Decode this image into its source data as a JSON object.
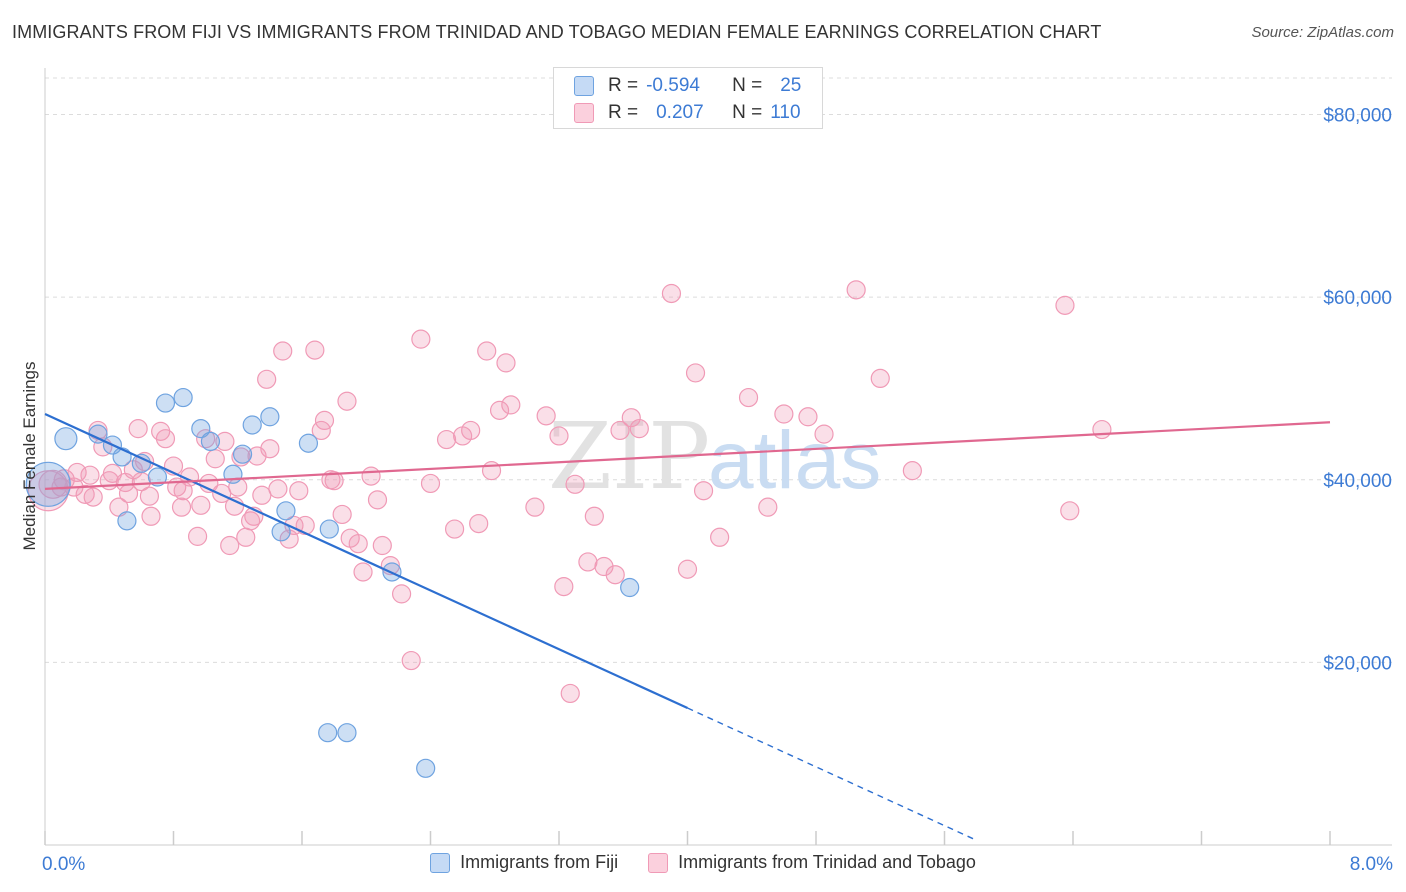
{
  "title": "IMMIGRANTS FROM FIJI VS IMMIGRANTS FROM TRINIDAD AND TOBAGO MEDIAN FEMALE EARNINGS CORRELATION CHART",
  "source": "Source: ZipAtlas.com",
  "watermark": {
    "zip": "ZIP",
    "atlas": "atlas"
  },
  "colors": {
    "fiji": "#6fa3e0",
    "fiji_line": "#2d6fd0",
    "tt": "#f09ab6",
    "tt_line": "#e06890",
    "axis_text": "#3d7bd4"
  },
  "stats": [
    {
      "r_label": "R =",
      "r_value": "-0.594",
      "n_label": "N =",
      "n_value": "25"
    },
    {
      "r_label": "R =",
      "r_value": "0.207",
      "n_label": "N =",
      "n_value": "110"
    }
  ],
  "legend": [
    {
      "label": "Immigrants from Fiji"
    },
    {
      "label": "Immigrants from Trinidad and Tobago"
    }
  ],
  "chart_data": {
    "type": "scatter",
    "xlabel": "",
    "ylabel": "Median Female Earnings",
    "xlim": [
      0,
      8
    ],
    "ylim": [
      0,
      84000
    ],
    "x_tick_labels": [
      "0.0%",
      "8.0%"
    ],
    "y_ticks": [
      20000,
      40000,
      60000,
      80000
    ],
    "y_tick_labels": [
      "$20,000",
      "$40,000",
      "$60,000",
      "$80,000"
    ],
    "grid": true,
    "series": [
      {
        "name": "Immigrants from Fiji",
        "trend": {
          "x0": 0,
          "y0": 47200,
          "x1": 4.0,
          "y1": 15000,
          "dashed_to_x": 5.8
        },
        "points": [
          [
            0.02,
            39500,
            22
          ],
          [
            0.13,
            44500,
            11
          ],
          [
            0.33,
            45000,
            9
          ],
          [
            0.48,
            42500,
            9
          ],
          [
            0.42,
            43800,
            9
          ],
          [
            0.6,
            41800,
            9
          ],
          [
            0.7,
            40300,
            9
          ],
          [
            0.51,
            35500,
            9
          ],
          [
            0.75,
            48400,
            9
          ],
          [
            0.86,
            49000,
            9
          ],
          [
            0.97,
            45600,
            9
          ],
          [
            1.03,
            44200,
            9
          ],
          [
            1.17,
            40600,
            9
          ],
          [
            1.23,
            42800,
            9
          ],
          [
            1.29,
            46000,
            9
          ],
          [
            1.4,
            46900,
            9
          ],
          [
            1.5,
            36600,
            9
          ],
          [
            1.47,
            34300,
            9
          ],
          [
            1.64,
            44000,
            9
          ],
          [
            1.77,
            34600,
            9
          ],
          [
            2.16,
            29900,
            9
          ],
          [
            1.76,
            12300,
            9
          ],
          [
            1.88,
            12300,
            9
          ],
          [
            2.37,
            8400,
            9
          ],
          [
            3.64,
            28200,
            9
          ]
        ]
      },
      {
        "name": "Immigrants from Trinidad and Tobago",
        "trend": {
          "x0": 0,
          "y0": 39000,
          "x1": 8.0,
          "y1": 46300
        },
        "points": [
          [
            0.02,
            38800,
            20
          ],
          [
            0.05,
            39500,
            14
          ],
          [
            0.12,
            40000,
            10
          ],
          [
            0.18,
            39200,
            9
          ],
          [
            0.25,
            38400,
            9
          ],
          [
            0.28,
            40500,
            9
          ],
          [
            0.33,
            45400,
            9
          ],
          [
            0.36,
            43600,
            9
          ],
          [
            0.42,
            40700,
            9
          ],
          [
            0.46,
            37000,
            9
          ],
          [
            0.5,
            39700,
            9
          ],
          [
            0.52,
            38500,
            9
          ],
          [
            0.58,
            45600,
            9
          ],
          [
            0.6,
            39800,
            9
          ],
          [
            0.62,
            42000,
            9
          ],
          [
            0.66,
            36000,
            9
          ],
          [
            0.72,
            45300,
            9
          ],
          [
            0.75,
            44500,
            9
          ],
          [
            0.8,
            41500,
            9
          ],
          [
            0.82,
            39200,
            9
          ],
          [
            0.86,
            38800,
            9
          ],
          [
            0.9,
            40300,
            9
          ],
          [
            0.95,
            33800,
            9
          ],
          [
            0.97,
            37200,
            9
          ],
          [
            1.0,
            44500,
            9
          ],
          [
            1.02,
            39600,
            9
          ],
          [
            1.06,
            42300,
            9
          ],
          [
            1.1,
            38500,
            9
          ],
          [
            1.12,
            44200,
            9
          ],
          [
            1.15,
            32800,
            9
          ],
          [
            1.18,
            37100,
            9
          ],
          [
            1.2,
            39200,
            9
          ],
          [
            1.22,
            42500,
            9
          ],
          [
            1.25,
            33700,
            9
          ],
          [
            1.28,
            35500,
            9
          ],
          [
            1.3,
            36000,
            9
          ],
          [
            1.32,
            42600,
            9
          ],
          [
            1.35,
            38300,
            9
          ],
          [
            1.38,
            51000,
            9
          ],
          [
            1.4,
            43400,
            9
          ],
          [
            1.45,
            39000,
            9
          ],
          [
            1.48,
            54100,
            9
          ],
          [
            1.52,
            33500,
            9
          ],
          [
            1.55,
            35000,
            9
          ],
          [
            1.58,
            38800,
            9
          ],
          [
            1.62,
            35000,
            9
          ],
          [
            1.68,
            54200,
            9
          ],
          [
            1.72,
            45400,
            9
          ],
          [
            1.74,
            46500,
            9
          ],
          [
            1.78,
            40000,
            9
          ],
          [
            1.8,
            39900,
            9
          ],
          [
            1.85,
            36200,
            9
          ],
          [
            1.88,
            48600,
            9
          ],
          [
            1.9,
            33600,
            9
          ],
          [
            1.95,
            33000,
            9
          ],
          [
            1.98,
            29900,
            9
          ],
          [
            2.03,
            40400,
            9
          ],
          [
            2.07,
            37800,
            9
          ],
          [
            2.1,
            32800,
            9
          ],
          [
            2.15,
            30600,
            9
          ],
          [
            2.22,
            27500,
            9
          ],
          [
            2.28,
            20200,
            9
          ],
          [
            2.34,
            55400,
            9
          ],
          [
            2.4,
            39600,
            9
          ],
          [
            2.5,
            44400,
            9
          ],
          [
            2.55,
            34600,
            9
          ],
          [
            2.6,
            44800,
            9
          ],
          [
            2.65,
            45400,
            9
          ],
          [
            2.7,
            35200,
            9
          ],
          [
            2.75,
            54100,
            9
          ],
          [
            2.78,
            41000,
            9
          ],
          [
            2.83,
            47600,
            9
          ],
          [
            2.87,
            52800,
            9
          ],
          [
            2.9,
            48200,
            9
          ],
          [
            3.05,
            37000,
            9
          ],
          [
            3.12,
            47000,
            9
          ],
          [
            3.2,
            44800,
            9
          ],
          [
            3.23,
            28300,
            9
          ],
          [
            3.27,
            16600,
            9
          ],
          [
            3.3,
            39500,
            9
          ],
          [
            3.38,
            31000,
            9
          ],
          [
            3.42,
            36000,
            9
          ],
          [
            3.48,
            30500,
            9
          ],
          [
            3.55,
            29600,
            9
          ],
          [
            3.58,
            45400,
            9
          ],
          [
            3.65,
            46800,
            9
          ],
          [
            3.7,
            45600,
            9
          ],
          [
            3.9,
            60400,
            9
          ],
          [
            4.0,
            30200,
            9
          ],
          [
            4.05,
            51700,
            9
          ],
          [
            4.1,
            38800,
            9
          ],
          [
            4.2,
            33700,
            9
          ],
          [
            4.38,
            49000,
            9
          ],
          [
            4.5,
            37000,
            9
          ],
          [
            4.6,
            47200,
            9
          ],
          [
            4.75,
            46900,
            9
          ],
          [
            4.85,
            45000,
            9
          ],
          [
            5.05,
            60800,
            9
          ],
          [
            5.2,
            51100,
            9
          ],
          [
            5.4,
            41000,
            9
          ],
          [
            6.35,
            59100,
            9
          ],
          [
            6.38,
            36600,
            9
          ],
          [
            6.58,
            45500,
            9
          ],
          [
            0.1,
            39200,
            9
          ],
          [
            0.2,
            40800,
            9
          ],
          [
            0.3,
            38100,
            9
          ],
          [
            0.4,
            39900,
            9
          ],
          [
            0.55,
            41100,
            9
          ],
          [
            0.65,
            38200,
            9
          ],
          [
            0.85,
            37000,
            9
          ]
        ]
      }
    ]
  }
}
